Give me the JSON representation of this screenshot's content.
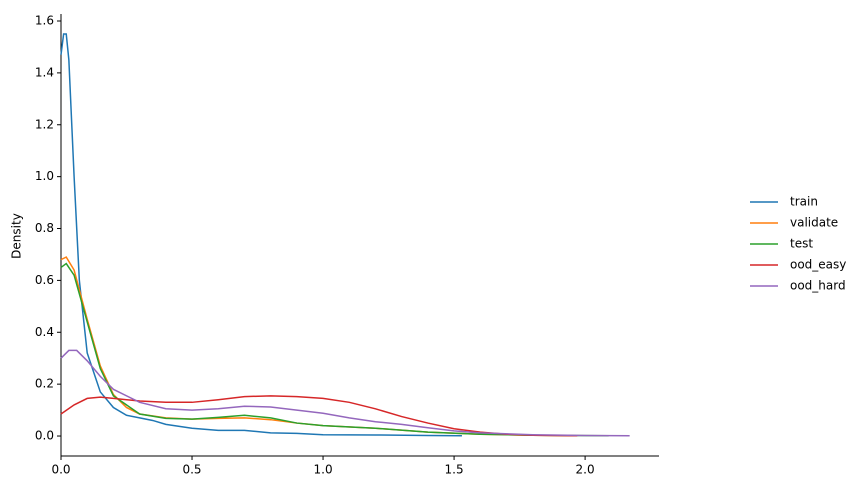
{
  "chart_data": {
    "type": "line",
    "y_label": "Density",
    "xlim": [
      0,
      2.282
    ],
    "ylim": [
      -0.077,
      1.627
    ],
    "xticks": [
      {
        "value": 0,
        "label": "0.0"
      },
      0.5,
      {
        "value": 1,
        "label": "1.0"
      },
      1.5,
      {
        "value": 2,
        "label": "2.0"
      }
    ],
    "yticks": [
      {
        "value": 0,
        "label": "0.0"
      },
      0.2,
      0.4,
      0.6,
      0.8,
      {
        "value": 1,
        "label": "1.0"
      },
      1.2,
      1.4,
      1.6
    ],
    "legend": "right",
    "series": [
      {
        "name": "train",
        "color": "#1f77b4",
        "x": [
          0,
          0.01,
          0.02,
          0.03,
          0.05,
          0.07,
          0.1,
          0.15,
          0.2,
          0.25,
          0.3,
          0.35,
          0.4,
          0.5,
          0.6,
          0.7,
          0.8,
          0.9,
          1.0,
          1.2,
          1.4,
          1.53
        ],
        "values": [
          1.47,
          1.55,
          1.55,
          1.45,
          1.0,
          0.6,
          0.32,
          0.17,
          0.11,
          0.08,
          0.07,
          0.06,
          0.045,
          0.03,
          0.022,
          0.022,
          0.012,
          0.01,
          0.005,
          0.004,
          0.002,
          0.001
        ]
      },
      {
        "name": "validate",
        "color": "#ff7f0e",
        "x": [
          0,
          0.02,
          0.05,
          0.1,
          0.15,
          0.2,
          0.25,
          0.3,
          0.4,
          0.5,
          0.6,
          0.7,
          0.8,
          0.9,
          1.0,
          1.2,
          1.4,
          1.6,
          1.8,
          1.97
        ],
        "values": [
          0.68,
          0.69,
          0.64,
          0.45,
          0.27,
          0.16,
          0.11,
          0.085,
          0.07,
          0.065,
          0.068,
          0.07,
          0.063,
          0.05,
          0.04,
          0.03,
          0.015,
          0.007,
          0.003,
          0.001
        ]
      },
      {
        "name": "test",
        "color": "#2ca02c",
        "x": [
          0,
          0.02,
          0.05,
          0.1,
          0.15,
          0.2,
          0.3,
          0.4,
          0.5,
          0.6,
          0.7,
          0.8,
          0.9,
          1.0,
          1.2,
          1.4,
          1.6,
          1.8,
          2.09
        ],
        "values": [
          0.65,
          0.665,
          0.62,
          0.44,
          0.26,
          0.155,
          0.085,
          0.068,
          0.065,
          0.072,
          0.08,
          0.07,
          0.05,
          0.04,
          0.03,
          0.015,
          0.007,
          0.003,
          0.001
        ]
      },
      {
        "name": "ood_easy",
        "color": "#d62728",
        "x": [
          0,
          0.05,
          0.1,
          0.15,
          0.2,
          0.3,
          0.4,
          0.5,
          0.6,
          0.7,
          0.8,
          0.9,
          1.0,
          1.1,
          1.2,
          1.3,
          1.4,
          1.5,
          1.6,
          1.7,
          1.8,
          1.97
        ],
        "values": [
          0.085,
          0.12,
          0.145,
          0.15,
          0.145,
          0.135,
          0.13,
          0.13,
          0.14,
          0.152,
          0.155,
          0.152,
          0.145,
          0.13,
          0.105,
          0.075,
          0.05,
          0.028,
          0.015,
          0.007,
          0.003,
          0.001
        ]
      },
      {
        "name": "ood_hard",
        "color": "#9467bd",
        "x": [
          0,
          0.03,
          0.06,
          0.1,
          0.15,
          0.2,
          0.3,
          0.4,
          0.5,
          0.6,
          0.7,
          0.8,
          0.9,
          1.0,
          1.1,
          1.2,
          1.3,
          1.4,
          1.5,
          1.6,
          1.8,
          2.0,
          2.17
        ],
        "values": [
          0.3,
          0.33,
          0.33,
          0.29,
          0.23,
          0.18,
          0.13,
          0.105,
          0.1,
          0.105,
          0.115,
          0.112,
          0.1,
          0.088,
          0.07,
          0.055,
          0.045,
          0.032,
          0.02,
          0.012,
          0.005,
          0.002,
          0.001
        ]
      }
    ]
  }
}
